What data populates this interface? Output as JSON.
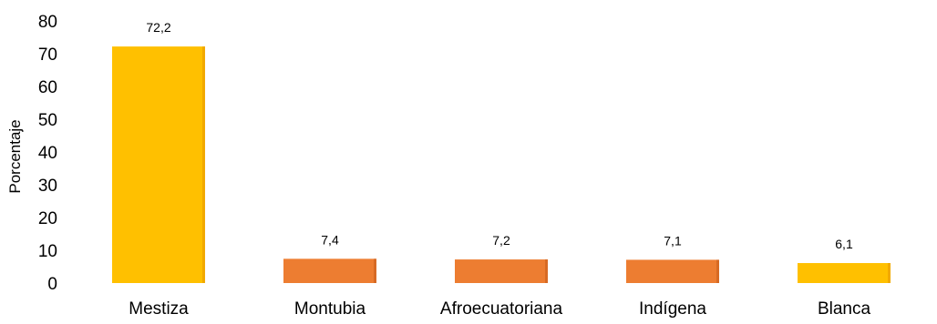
{
  "chart_data": {
    "type": "bar",
    "categories": [
      "Mestiza",
      "Montubia",
      "Afroecuatoriana",
      "Indígena",
      "Blanca"
    ],
    "values": [
      72.2,
      7.4,
      7.2,
      7.1,
      6.1
    ],
    "value_labels": [
      "72,2",
      "7,4",
      "7,2",
      "7,1",
      "6,1"
    ],
    "bar_colors": [
      "#FFC000",
      "#ED7D31",
      "#ED7D31",
      "#ED7D31",
      "#FFC000"
    ],
    "bar_shades": [
      "#F2A900",
      "#D76A24",
      "#D76A24",
      "#D76A24",
      "#F2A900"
    ],
    "title": "",
    "xlabel": "",
    "ylabel": "Porcentaje",
    "ylim": [
      0,
      80
    ],
    "yticks": [
      0,
      10,
      20,
      30,
      40,
      50,
      60,
      70,
      80
    ],
    "ytick_labels": [
      "0",
      "10",
      "20",
      "30",
      "40",
      "50",
      "60",
      "70",
      "80"
    ],
    "grid": false,
    "legend": "none"
  }
}
